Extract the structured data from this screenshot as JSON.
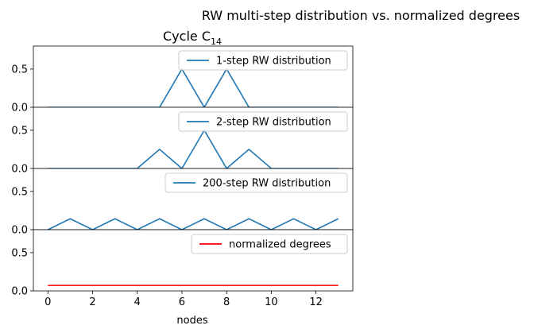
{
  "figure": {
    "suptitle": "RW multi-step distribution vs. normalized degrees",
    "title": "Cycle C",
    "title_subscript": "14",
    "xlabel": "nodes"
  },
  "chart_data": [
    {
      "type": "line",
      "x": [
        0,
        1,
        2,
        3,
        4,
        5,
        6,
        7,
        8,
        9,
        10,
        11,
        12,
        13
      ],
      "series": [
        {
          "name": "1-step RW distribution",
          "color": "#1f77b4",
          "values": [
            0,
            0,
            0,
            0,
            0,
            0,
            0.5,
            0,
            0.5,
            0,
            0,
            0,
            0,
            0
          ]
        }
      ],
      "ylim": [
        0,
        0.8
      ],
      "yticks": [
        "0.0",
        "0.5"
      ],
      "legend": "top-right"
    },
    {
      "type": "line",
      "x": [
        0,
        1,
        2,
        3,
        4,
        5,
        6,
        7,
        8,
        9,
        10,
        11,
        12,
        13
      ],
      "series": [
        {
          "name": "2-step RW distribution",
          "color": "#1f77b4",
          "values": [
            0,
            0,
            0,
            0,
            0,
            0.25,
            0,
            0.5,
            0,
            0.25,
            0,
            0,
            0,
            0
          ]
        }
      ],
      "ylim": [
        0,
        0.8
      ],
      "yticks": [
        "0.0",
        "0.5"
      ],
      "legend": "top-right"
    },
    {
      "type": "line",
      "x": [
        0,
        1,
        2,
        3,
        4,
        5,
        6,
        7,
        8,
        9,
        10,
        11,
        12,
        13
      ],
      "series": [
        {
          "name": "200-step RW distribution",
          "color": "#1f77b4",
          "values": [
            0,
            0.143,
            0,
            0.143,
            0,
            0.143,
            0,
            0.143,
            0,
            0.143,
            0,
            0.143,
            0,
            0.143
          ]
        }
      ],
      "ylim": [
        0,
        0.8
      ],
      "yticks": [
        "0.0",
        "0.5"
      ],
      "legend": "top-right"
    },
    {
      "type": "line",
      "x": [
        0,
        1,
        2,
        3,
        4,
        5,
        6,
        7,
        8,
        9,
        10,
        11,
        12,
        13
      ],
      "series": [
        {
          "name": "normalized degrees",
          "color": "#ff0000",
          "values": [
            0.0714,
            0.0714,
            0.0714,
            0.0714,
            0.0714,
            0.0714,
            0.0714,
            0.0714,
            0.0714,
            0.0714,
            0.0714,
            0.0714,
            0.0714,
            0.0714
          ]
        }
      ],
      "ylim": [
        0,
        0.8
      ],
      "yticks": [
        "0.0",
        "0.5"
      ],
      "xticks": [
        "0",
        "2",
        "4",
        "6",
        "8",
        "10",
        "12"
      ],
      "legend": "top-right"
    }
  ]
}
